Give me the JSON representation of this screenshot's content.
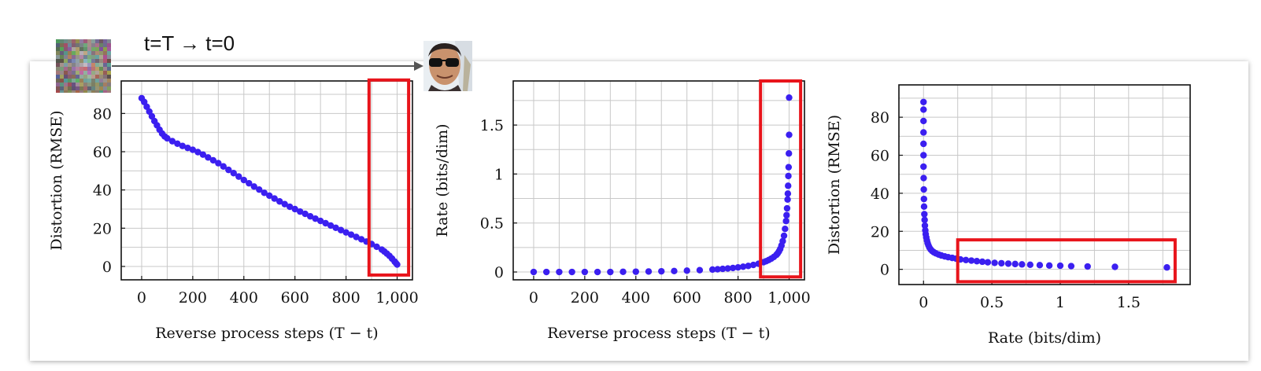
{
  "header": {
    "process_label": "t=T → t=0",
    "start_image": "noise-image",
    "end_image": "face-with-sunglasses-image"
  },
  "colors": {
    "series": "#3b1ff0",
    "highlight": "#e8141b",
    "grid": "#c8c8c8",
    "arrow": "#555555"
  },
  "chart_data": [
    {
      "type": "scatter",
      "title": "",
      "xlabel": "Reverse process steps (T − t)",
      "ylabel": "Distortion (RMSE)",
      "xlim": [
        -80,
        1060
      ],
      "ylim": [
        -7,
        97
      ],
      "xticks": [
        0,
        200,
        400,
        600,
        800,
        1000
      ],
      "xtick_labels": [
        "0",
        "200",
        "400",
        "600",
        "800",
        "1,000"
      ],
      "yticks": [
        0,
        20,
        40,
        60,
        80
      ],
      "ytick_labels": [
        "0",
        "20",
        "40",
        "60",
        "80"
      ],
      "grid": true,
      "series": [
        {
          "x": [
            0,
            10,
            20,
            30,
            40,
            50,
            60,
            70,
            80,
            90,
            100,
            120,
            140,
            160,
            180,
            200,
            220,
            240,
            260,
            280,
            300,
            320,
            340,
            360,
            380,
            400,
            420,
            440,
            460,
            480,
            500,
            520,
            540,
            560,
            580,
            600,
            620,
            640,
            660,
            680,
            700,
            720,
            740,
            760,
            780,
            800,
            820,
            840,
            860,
            880,
            900,
            920,
            940,
            950,
            960,
            970,
            980,
            990,
            995,
            1000
          ],
          "y": [
            88,
            86,
            83.5,
            81,
            78.5,
            76,
            73.8,
            71.5,
            69.5,
            68,
            67,
            65.5,
            64.2,
            63,
            62,
            61,
            59.8,
            58.5,
            57,
            55.5,
            54,
            52.3,
            50.5,
            48.8,
            47,
            45.2,
            43.5,
            41.8,
            40.2,
            38.5,
            37,
            35.5,
            34,
            32.6,
            31.2,
            30,
            28.7,
            27.5,
            26.2,
            25,
            23.8,
            22.6,
            21.4,
            20.2,
            19,
            17.8,
            16.6,
            15.4,
            14.2,
            13,
            11.7,
            10.3,
            8.8,
            7.8,
            6.7,
            5.5,
            4.1,
            2.6,
            1.8,
            1
          ]
        }
      ],
      "highlight": {
        "x": [
          890,
          1045
        ],
        "y": [
          -4.5,
          97.5
        ]
      }
    },
    {
      "type": "scatter",
      "title": "",
      "xlabel": "Reverse process steps (T − t)",
      "ylabel": "Rate (bits/dim)",
      "xlim": [
        -80,
        1060
      ],
      "ylim": [
        -0.08,
        1.95
      ],
      "xticks": [
        0,
        200,
        400,
        600,
        800,
        1000
      ],
      "xtick_labels": [
        "0",
        "200",
        "400",
        "600",
        "800",
        "1,000"
      ],
      "yticks": [
        0,
        0.5,
        1,
        1.5
      ],
      "ytick_labels": [
        "0",
        "0.5",
        "1",
        "1.5"
      ],
      "grid": true,
      "series": [
        {
          "x": [
            0,
            50,
            100,
            150,
            200,
            250,
            300,
            350,
            400,
            450,
            500,
            550,
            600,
            650,
            700,
            720,
            740,
            760,
            780,
            800,
            820,
            840,
            860,
            880,
            900,
            910,
            920,
            930,
            940,
            950,
            955,
            960,
            965,
            970,
            975,
            980,
            984,
            988,
            990,
            992,
            994,
            995,
            996,
            997,
            998,
            999,
            1000
          ],
          "y": [
            0,
            0,
            0,
            0,
            0,
            0,
            0,
            0.002,
            0.003,
            0.005,
            0.007,
            0.01,
            0.014,
            0.019,
            0.025,
            0.028,
            0.032,
            0.036,
            0.041,
            0.047,
            0.054,
            0.062,
            0.072,
            0.084,
            0.1,
            0.11,
            0.122,
            0.136,
            0.153,
            0.175,
            0.19,
            0.21,
            0.235,
            0.27,
            0.315,
            0.37,
            0.44,
            0.52,
            0.58,
            0.65,
            0.74,
            0.8,
            0.88,
            0.98,
            1.07,
            1.21,
            1.4
          ]
        },
        {
          "x": [
            1000
          ],
          "y": [
            1.78
          ]
        }
      ],
      "highlight": {
        "x": [
          888,
          1045
        ],
        "y": [
          -0.05,
          1.95
        ]
      }
    },
    {
      "type": "scatter",
      "title": "",
      "xlabel": "Rate (bits/dim)",
      "ylabel": "Distortion (RMSE)",
      "xlim": [
        -0.18,
        1.95
      ],
      "ylim": [
        -8,
        97
      ],
      "xticks": [
        0,
        0.5,
        1,
        1.5
      ],
      "xtick_labels": [
        "0",
        "0.5",
        "1",
        "1.5"
      ],
      "yticks": [
        0,
        20,
        40,
        60,
        80
      ],
      "ytick_labels": [
        "0",
        "20",
        "40",
        "60",
        "80"
      ],
      "grid": true,
      "series": [
        {
          "x": [
            0,
            0,
            0,
            0,
            0,
            0,
            0,
            0.001,
            0.002,
            0.003,
            0.004,
            0.006,
            0.008,
            0.01,
            0.013,
            0.016,
            0.02,
            0.025,
            0.03,
            0.036,
            0.043,
            0.052,
            0.062,
            0.075,
            0.09,
            0.11,
            0.13,
            0.155,
            0.18,
            0.21,
            0.24,
            0.27,
            0.31,
            0.35,
            0.39,
            0.43,
            0.47,
            0.52,
            0.57,
            0.62,
            0.67,
            0.72,
            0.78,
            0.85,
            0.92,
            1.0,
            1.08,
            1.2,
            1.4,
            1.78
          ],
          "y": [
            88,
            84,
            78,
            72,
            66,
            60,
            54,
            48,
            42,
            37,
            33,
            29,
            26,
            23,
            20.5,
            18.5,
            16.8,
            15.2,
            13.8,
            12.6,
            11.5,
            10.5,
            9.7,
            9,
            8.4,
            7.8,
            7.3,
            6.8,
            6.4,
            6.0,
            5.6,
            5.2,
            4.9,
            4.6,
            4.3,
            4.0,
            3.7,
            3.4,
            3.2,
            3.0,
            2.8,
            2.6,
            2.4,
            2.2,
            2.0,
            1.9,
            1.7,
            1.5,
            1.3,
            1.0
          ]
        }
      ],
      "highlight": {
        "x": [
          0.25,
          1.84
        ],
        "y": [
          -6.5,
          15.5
        ]
      }
    }
  ]
}
